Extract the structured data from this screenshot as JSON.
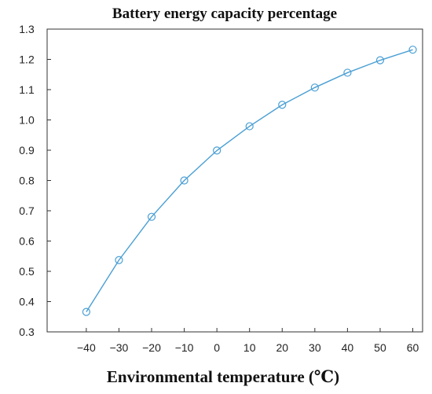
{
  "chart_data": {
    "type": "line",
    "title": "Battery energy capacity percentage",
    "xlabel": "Environmental temperature (℃)",
    "ylabel": "",
    "x": [
      -40,
      -30,
      -20,
      -10,
      0,
      10,
      20,
      30,
      40,
      50,
      60
    ],
    "xticks": [
      "-40",
      "-30",
      "-20",
      "-10",
      "0",
      "10",
      "20",
      "30",
      "40",
      "50",
      "60"
    ],
    "yticks": [
      "0.3",
      "0.4",
      "0.5",
      "0.6",
      "0.7",
      "0.8",
      "0.9",
      "1.0",
      "1.1",
      "1.2",
      "1.3"
    ],
    "xlim": [
      -52,
      63
    ],
    "ylim": [
      0.3,
      1.3
    ],
    "grid": false,
    "legend": "none",
    "series": [
      {
        "values": [
          0.366,
          0.537,
          0.68,
          0.8,
          0.899,
          0.979,
          1.05,
          1.107,
          1.156,
          1.197,
          1.232
        ],
        "color": "#4a9fd4",
        "marker": "circle-open"
      }
    ]
  }
}
